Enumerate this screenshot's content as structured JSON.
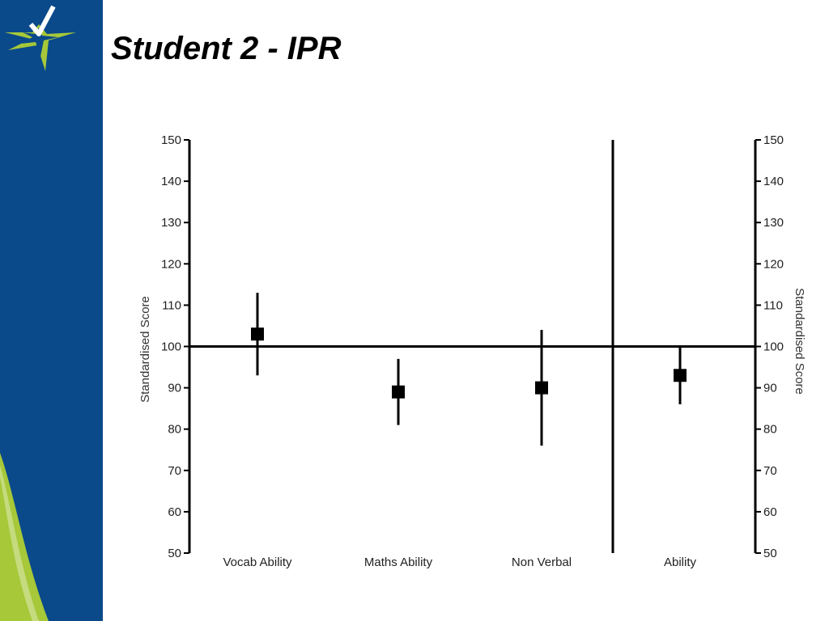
{
  "slide": {
    "title": "Student 2 - IPR"
  },
  "colors": {
    "sidebar": "#0a4a8a",
    "accent": "#a6c839",
    "chart_ink": "#000000"
  },
  "chart_data": {
    "type": "scatter",
    "title": "",
    "ylabel_left": "Standardised Score",
    "ylabel_right": "Standardised Score",
    "ylim": [
      50,
      150
    ],
    "yticks": [
      50,
      60,
      70,
      80,
      90,
      100,
      110,
      120,
      130,
      140,
      150
    ],
    "reference_line": 100,
    "grid": false,
    "legend": "none",
    "categories": [
      "Vocab Ability",
      "Maths Ability",
      "Non Verbal",
      "Ability"
    ],
    "points": [
      {
        "category": "Vocab Ability",
        "score": 103,
        "lower": 93,
        "upper": 113
      },
      {
        "category": "Maths Ability",
        "score": 89,
        "lower": 81,
        "upper": 97
      },
      {
        "category": "Non Verbal",
        "score": 90,
        "lower": 76,
        "upper": 104
      },
      {
        "category": "Ability",
        "score": 93,
        "lower": 86,
        "upper": 100
      }
    ],
    "divider_between": [
      "Non Verbal",
      "Ability"
    ]
  }
}
